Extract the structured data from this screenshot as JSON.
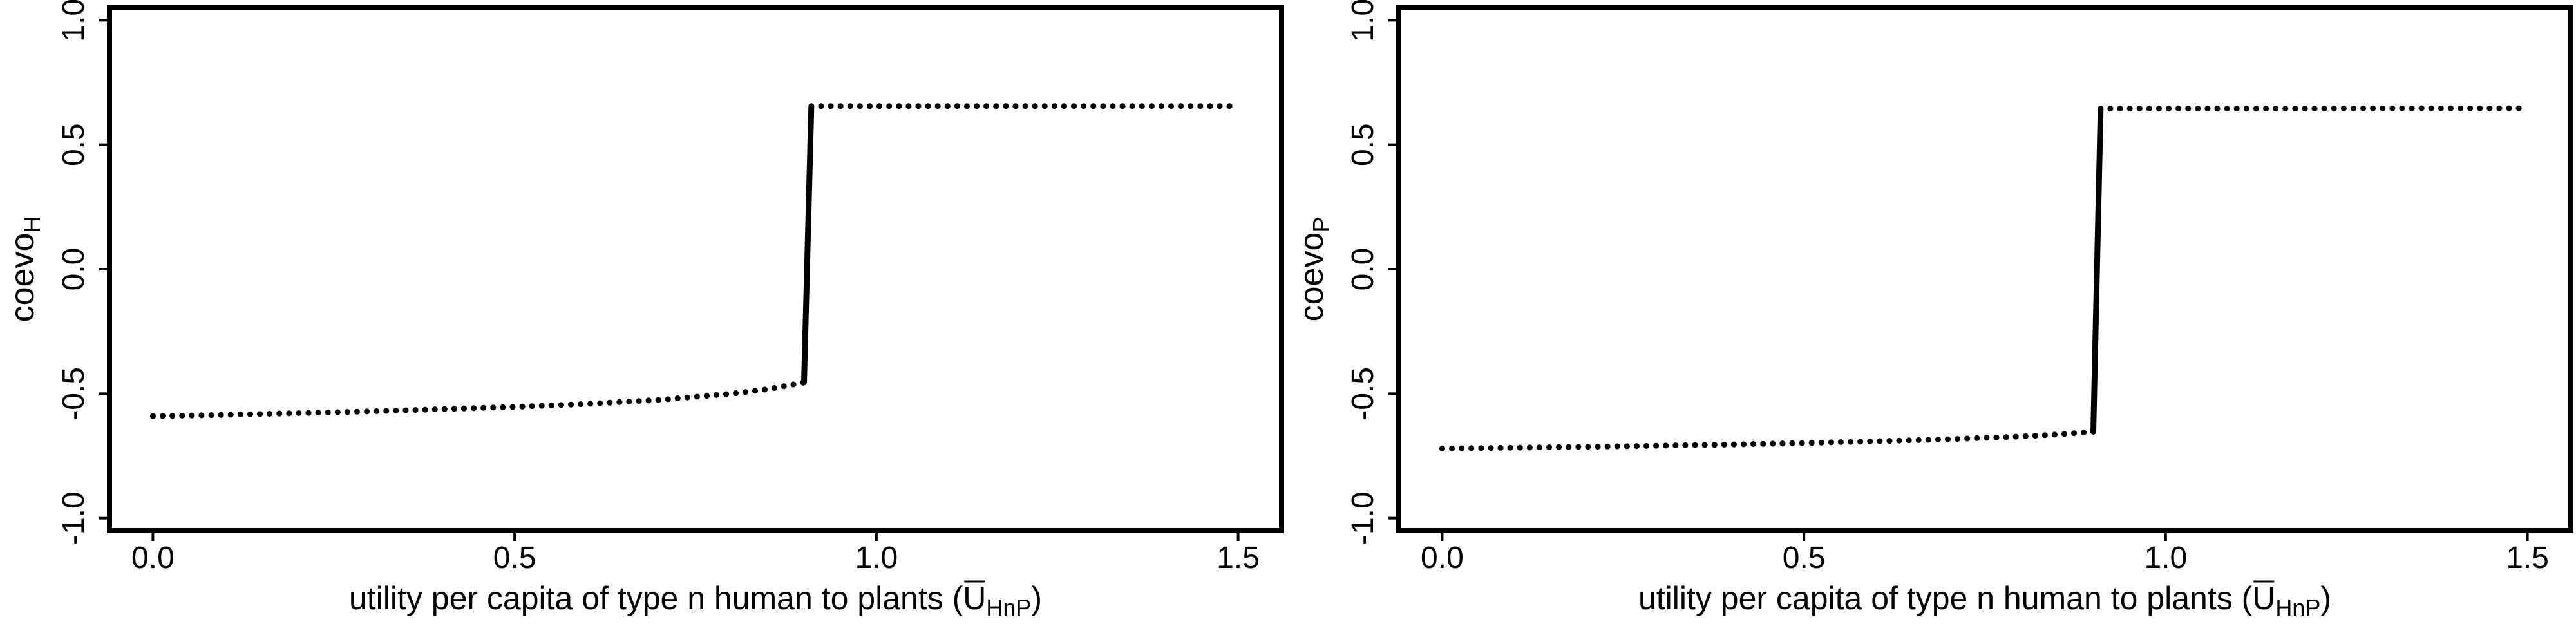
{
  "chart_data": [
    {
      "type": "line",
      "ylabel": "coevo",
      "ylabel_subscript": "H",
      "xlabel": "utility per capita of type n human to plants (U",
      "xlabel_subscript": "HnP",
      "xlabel_close": ")",
      "xlim": [
        -0.06,
        1.56
      ],
      "ylim": [
        -1.05,
        1.05
      ],
      "x_ticks": [
        0.0,
        0.5,
        1.0,
        1.5
      ],
      "x_tick_labels": [
        "0.0",
        "0.5",
        "1.0",
        "1.5"
      ],
      "y_ticks": [
        -1.0,
        -0.5,
        0.0,
        0.5,
        1.0
      ],
      "y_tick_labels": [
        "-1.0",
        "-0.5",
        "0.0",
        "0.5",
        "1.0"
      ],
      "series": [
        {
          "style": "dotted",
          "x": [
            0.0,
            0.1,
            0.2,
            0.3,
            0.4,
            0.5,
            0.6,
            0.7,
            0.8,
            0.85,
            0.9
          ],
          "y": [
            -0.59,
            -0.585,
            -0.578,
            -0.571,
            -0.562,
            -0.553,
            -0.541,
            -0.525,
            -0.5,
            -0.482,
            -0.455
          ]
        },
        {
          "style": "solid",
          "x": [
            0.9,
            0.91
          ],
          "y": [
            -0.455,
            0.65
          ]
        },
        {
          "style": "dotted",
          "x": [
            0.91,
            1.0,
            1.1,
            1.2,
            1.3,
            1.4,
            1.5
          ],
          "y": [
            0.655,
            0.655,
            0.655,
            0.655,
            0.655,
            0.655,
            0.655
          ]
        }
      ]
    },
    {
      "type": "line",
      "ylabel": "coevo",
      "ylabel_subscript": "P",
      "xlabel": "utility per capita of type n human to plants (U",
      "xlabel_subscript": "HnP",
      "xlabel_close": ")",
      "xlim": [
        -0.06,
        1.56
      ],
      "ylim": [
        -1.05,
        1.05
      ],
      "x_ticks": [
        0.0,
        0.5,
        1.0,
        1.5
      ],
      "x_tick_labels": [
        "0.0",
        "0.5",
        "1.0",
        "1.5"
      ],
      "y_ticks": [
        -1.0,
        -0.5,
        0.0,
        0.5,
        1.0
      ],
      "y_tick_labels": [
        "-1.0",
        "-0.5",
        "0.0",
        "0.5",
        "1.0"
      ],
      "series": [
        {
          "style": "dotted",
          "x": [
            0.0,
            0.1,
            0.2,
            0.3,
            0.4,
            0.5,
            0.6,
            0.7,
            0.8,
            0.85,
            0.9
          ],
          "y": [
            -0.72,
            -0.717,
            -0.713,
            -0.709,
            -0.704,
            -0.698,
            -0.691,
            -0.683,
            -0.672,
            -0.664,
            -0.653
          ]
        },
        {
          "style": "solid",
          "x": [
            0.9,
            0.91
          ],
          "y": [
            -0.653,
            0.64
          ]
        },
        {
          "style": "dotted",
          "x": [
            0.91,
            1.0,
            1.1,
            1.2,
            1.3,
            1.4,
            1.5
          ],
          "y": [
            0.645,
            0.645,
            0.645,
            0.645,
            0.646,
            0.646,
            0.646
          ]
        }
      ]
    }
  ]
}
